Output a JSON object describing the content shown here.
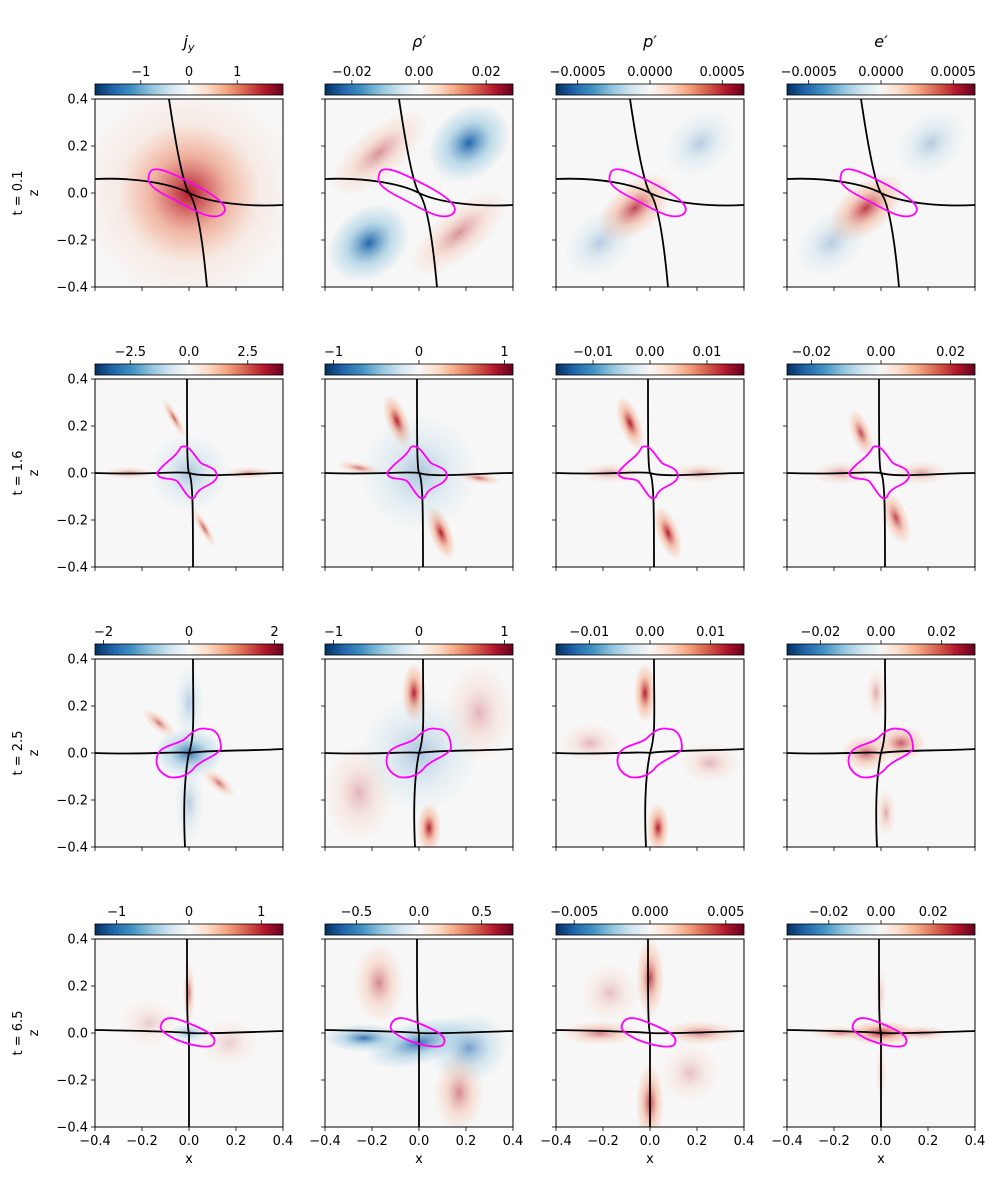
{
  "chart_data": {
    "type": "heatmap",
    "colormap": "RdBu_r",
    "colors": {
      "negative": "#053061",
      "zero": "#f7f7f7",
      "positive": "#67001f",
      "separatrix": "#000000",
      "contour": "#ff00ff"
    },
    "column_titles": [
      "j",
      "ρ′",
      "p′",
      "e′"
    ],
    "column_title_subscripts": [
      "y",
      "",
      "",
      ""
    ],
    "xlabel": "x",
    "ylabel": "z",
    "xlim": [
      -0.4,
      0.4
    ],
    "ylim": [
      -0.4,
      0.4
    ],
    "x_ticks": [
      "−0.4",
      "−0.2",
      "0.0",
      "0.2",
      "0.4"
    ],
    "y_ticks": [
      "0.4",
      "0.2",
      "0.0",
      "−0.2",
      "−0.4"
    ],
    "grid": false,
    "rows": [
      {
        "label": "t = 0.1",
        "time": 0.1,
        "panels": [
          {
            "quantity": "j_y",
            "clim": [
              -1.95,
              1.95
            ],
            "ticks": [
              -1,
              0,
              1
            ],
            "tick_labels": [
              "−1",
              "0",
              "1"
            ]
          },
          {
            "quantity": "rho'",
            "clim": [
              -0.028,
              0.028
            ],
            "ticks": [
              -0.02,
              0,
              0.02
            ],
            "tick_labels": [
              "−0.02",
              "0.00",
              "0.02"
            ]
          },
          {
            "quantity": "p'",
            "clim": [
              -0.00065,
              0.00065
            ],
            "ticks": [
              -0.0005,
              0,
              0.0005
            ],
            "tick_labels": [
              "−0.0005",
              "0.0000",
              "0.0005"
            ]
          },
          {
            "quantity": "e'",
            "clim": [
              -0.00065,
              0.00065
            ],
            "ticks": [
              -0.0005,
              0,
              0.0005
            ],
            "tick_labels": [
              "−0.0005",
              "0.0000",
              "0.0005"
            ]
          }
        ]
      },
      {
        "label": "t = 1.6",
        "time": 1.6,
        "panels": [
          {
            "quantity": "j_y",
            "clim": [
              -4.0,
              4.0
            ],
            "ticks": [
              -2.5,
              0,
              2.5
            ],
            "tick_labels": [
              "−2.5",
              "0.0",
              "2.5"
            ]
          },
          {
            "quantity": "rho'",
            "clim": [
              -1.1,
              1.1
            ],
            "ticks": [
              -1,
              0,
              1
            ],
            "tick_labels": [
              "−1",
              "0",
              "1"
            ]
          },
          {
            "quantity": "p'",
            "clim": [
              -0.0165,
              0.0165
            ],
            "ticks": [
              -0.01,
              0,
              0.01
            ],
            "tick_labels": [
              "−0.01",
              "0.00",
              "0.01"
            ]
          },
          {
            "quantity": "e'",
            "clim": [
              -0.027,
              0.027
            ],
            "ticks": [
              -0.02,
              0,
              0.02
            ],
            "tick_labels": [
              "−0.02",
              "0.00",
              "0.02"
            ]
          }
        ]
      },
      {
        "label": "t = 2.5",
        "time": 2.5,
        "panels": [
          {
            "quantity": "j_y",
            "clim": [
              -2.2,
              2.2
            ],
            "ticks": [
              -2,
              0,
              2
            ],
            "tick_labels": [
              "−2",
              "0",
              "2"
            ]
          },
          {
            "quantity": "rho'",
            "clim": [
              -1.1,
              1.1
            ],
            "ticks": [
              -1,
              0,
              1
            ],
            "tick_labels": [
              "−1",
              "0",
              "1"
            ]
          },
          {
            "quantity": "p'",
            "clim": [
              -0.0155,
              0.0155
            ],
            "ticks": [
              -0.01,
              0,
              0.01
            ],
            "tick_labels": [
              "−0.01",
              "0.00",
              "0.01"
            ]
          },
          {
            "quantity": "e'",
            "clim": [
              -0.031,
              0.031
            ],
            "ticks": [
              -0.02,
              0,
              0.02
            ],
            "tick_labels": [
              "−0.02",
              "0.00",
              "0.02"
            ]
          }
        ]
      },
      {
        "label": "t = 6.5",
        "time": 6.5,
        "panels": [
          {
            "quantity": "j_y",
            "clim": [
              -1.3,
              1.3
            ],
            "ticks": [
              -1,
              0,
              1
            ],
            "tick_labels": [
              "−1",
              "0",
              "1"
            ]
          },
          {
            "quantity": "rho'",
            "clim": [
              -0.75,
              0.75
            ],
            "ticks": [
              -0.5,
              0,
              0.5
            ],
            "tick_labels": [
              "−0.5",
              "0.0",
              "0.5"
            ]
          },
          {
            "quantity": "p'",
            "clim": [
              -0.0062,
              0.0062
            ],
            "ticks": [
              -0.005,
              0,
              0.005
            ],
            "tick_labels": [
              "−0.005",
              "0.000",
              "0.005"
            ]
          },
          {
            "quantity": "e'",
            "clim": [
              -0.036,
              0.036
            ],
            "ticks": [
              -0.02,
              0,
              0.02
            ],
            "tick_labels": [
              "−0.02",
              "0.00",
              "0.02"
            ]
          }
        ]
      }
    ]
  }
}
